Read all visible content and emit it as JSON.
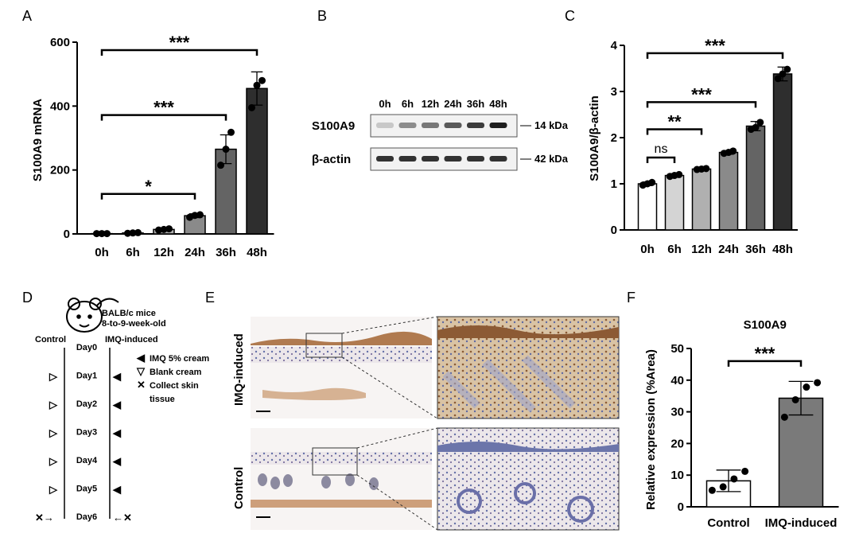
{
  "panels": {
    "A": "A",
    "B": "B",
    "C": "C",
    "D": "D",
    "E": "E",
    "F": "F"
  },
  "chart_data": [
    {
      "id": "A",
      "type": "bar",
      "ylabel": "S100A9 mRNA",
      "categories": [
        "0h",
        "6h",
        "12h",
        "24h",
        "36h",
        "48h"
      ],
      "values": [
        1,
        3,
        14,
        57,
        265,
        455
      ],
      "errors": [
        1,
        2,
        4,
        6,
        45,
        52
      ],
      "points": [
        [
          1,
          1,
          1
        ],
        [
          2,
          3,
          4
        ],
        [
          12,
          14,
          16
        ],
        [
          52,
          58,
          60
        ],
        [
          215,
          265,
          318
        ],
        [
          395,
          465,
          480
        ]
      ],
      "colors": [
        "#ffffff",
        "#d4d4d4",
        "#b0b0b0",
        "#8a8a8a",
        "#646464",
        "#2e2e2e"
      ],
      "ylim": [
        0,
        600
      ],
      "yticks": [
        0,
        200,
        400,
        600
      ],
      "sig": [
        {
          "from": 0,
          "to": 3,
          "y": 125,
          "label": "*"
        },
        {
          "from": 0,
          "to": 4,
          "y": 372,
          "label": "***"
        },
        {
          "from": 0,
          "to": 5,
          "y": 575,
          "label": "***"
        }
      ]
    },
    {
      "id": "C",
      "type": "bar",
      "ylabel": "S100A9/β-actin",
      "categories": [
        "0h",
        "6h",
        "12h",
        "24h",
        "36h",
        "48h"
      ],
      "values": [
        1.0,
        1.18,
        1.32,
        1.68,
        2.25,
        3.38
      ],
      "errors": [
        0.04,
        0.04,
        0.02,
        0.04,
        0.1,
        0.15
      ],
      "points": [
        [
          0.97,
          1.0,
          1.03
        ],
        [
          1.16,
          1.18,
          1.2
        ],
        [
          1.31,
          1.32,
          1.33
        ],
        [
          1.66,
          1.68,
          1.71
        ],
        [
          2.18,
          2.22,
          2.33
        ],
        [
          3.28,
          3.38,
          3.48
        ]
      ],
      "colors": [
        "#ffffff",
        "#d4d4d4",
        "#b0b0b0",
        "#8a8a8a",
        "#646464",
        "#2e2e2e"
      ],
      "ylim": [
        0,
        4
      ],
      "yticks": [
        0,
        1,
        2,
        3,
        4
      ],
      "sig": [
        {
          "from": 0,
          "to": 1,
          "y": 1.57,
          "label": "ns"
        },
        {
          "from": 0,
          "to": 2,
          "y": 2.18,
          "label": "**"
        },
        {
          "from": 0,
          "to": 4,
          "y": 2.77,
          "label": "***"
        },
        {
          "from": 0,
          "to": 5,
          "y": 3.83,
          "label": "***"
        }
      ]
    },
    {
      "id": "F",
      "type": "bar",
      "title": "S100A9",
      "ylabel": "Relative expression (%Area)",
      "categories": [
        "Control",
        "IMQ-induced"
      ],
      "values": [
        8.2,
        34.3
      ],
      "errors": [
        3.4,
        5.3
      ],
      "points": [
        [
          5.2,
          6.3,
          8.8,
          11.2
        ],
        [
          28.3,
          33.8,
          37.8,
          39.2
        ]
      ],
      "colors": [
        "#ffffff",
        "#7a7a7a"
      ],
      "ylim": [
        0,
        50
      ],
      "yticks": [
        0,
        10,
        20,
        30,
        40,
        50
      ],
      "sig": [
        {
          "from": 0,
          "to": 1,
          "y": 46,
          "label": "***"
        }
      ]
    }
  ],
  "western": {
    "lanes": [
      "0h",
      "6h",
      "12h",
      "24h",
      "36h",
      "48h"
    ],
    "rows": [
      {
        "label": "S100A9",
        "size": "14 kDa",
        "intensity": [
          0.15,
          0.45,
          0.55,
          0.7,
          0.85,
          1.0
        ]
      },
      {
        "label": "β-actin",
        "size": "42 kDa",
        "intensity": [
          0.9,
          0.9,
          0.9,
          0.9,
          0.9,
          0.9
        ]
      }
    ]
  },
  "schematic": {
    "mouse_line1": "BALB/c mice",
    "mouse_line2": "8-to-9-week-old",
    "control": "Control",
    "imq": "IMQ-induced",
    "days": [
      "Day0",
      "Day1",
      "Day2",
      "Day3",
      "Day4",
      "Day5",
      "Day6"
    ],
    "legend": [
      {
        "symbol": "◀",
        "text": "IMQ 5% cream"
      },
      {
        "symbol": "▽",
        "text": "Blank cream"
      },
      {
        "symbol": "✕",
        "text": "Collect skin"
      },
      {
        "symbol": "",
        "text": "tissue"
      }
    ]
  },
  "histology": {
    "row1": "IMQ-induced",
    "row2": "Control"
  }
}
